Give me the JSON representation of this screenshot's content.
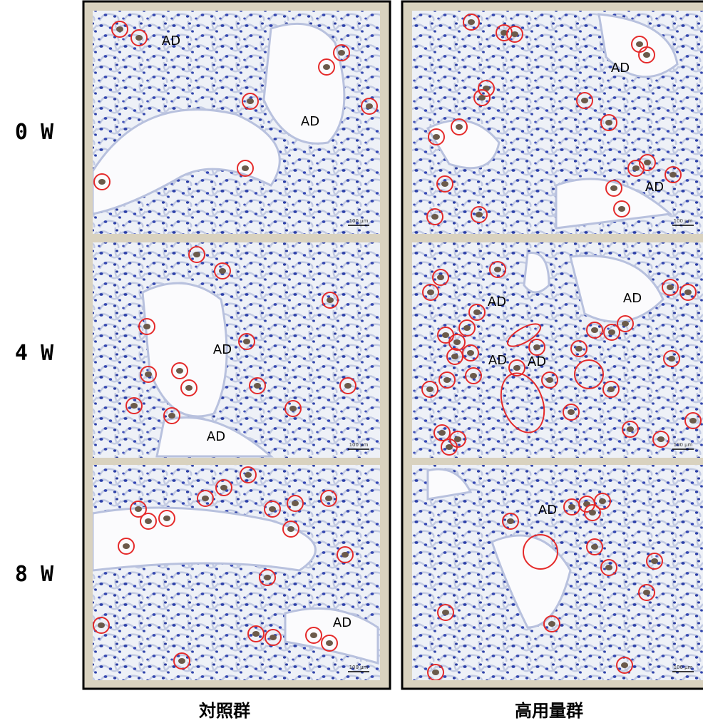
{
  "row_labels": [
    "0 W",
    "4 W",
    "8 W"
  ],
  "column_labels": [
    "対照群",
    "高用量群"
  ],
  "panels": [
    [
      {
        "annotations": [
          "AD",
          "AD"
        ],
        "scale_bar": "100 μm"
      },
      {
        "annotations": [
          "AD",
          "AD"
        ],
        "scale_bar": "100 μm"
      }
    ],
    [
      {
        "annotations": [
          "AD",
          "AD"
        ],
        "scale_bar": "100 μm"
      },
      {
        "annotations": [
          "AD",
          "AD",
          "AD",
          "AD"
        ],
        "scale_bar": "100 μm"
      }
    ],
    [
      {
        "annotations": [
          "AD"
        ],
        "scale_bar": "100 μm"
      },
      {
        "annotations": [
          "AD"
        ],
        "scale_bar": "100 μm"
      }
    ]
  ]
}
